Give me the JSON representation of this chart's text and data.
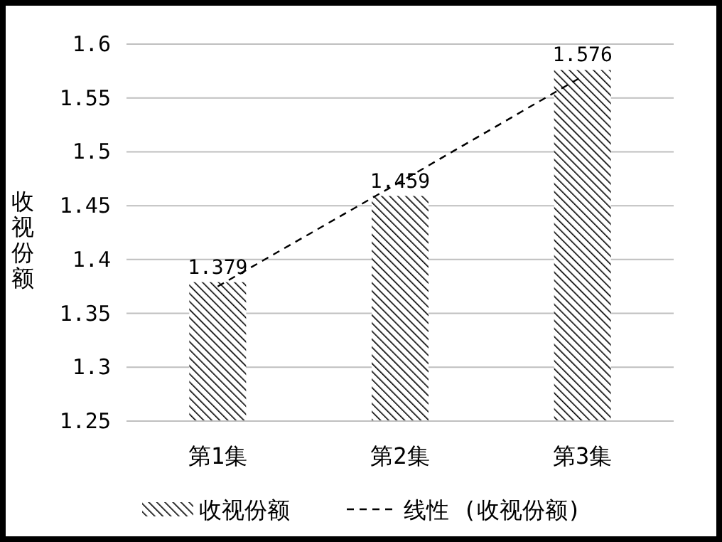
{
  "chart_data": {
    "type": "bar",
    "ylabel": "收视份额",
    "categories": [
      "第1集",
      "第2集",
      "第3集"
    ],
    "series": [
      {
        "name": "收视份额",
        "color": "#000000",
        "values": [
          1.379,
          1.459,
          1.576
        ],
        "data_labels": true
      },
      {
        "name": "线性 (收视份额)",
        "type": "line",
        "color": "#000000",
        "values": [
          1.375,
          1.472,
          1.57
        ],
        "line_style": "dashed",
        "marker": "none"
      }
    ],
    "ylim": [
      1.25,
      1.6
    ],
    "yticks": [
      1.25,
      1.3,
      1.35,
      1.4,
      1.45,
      1.5,
      1.55,
      1.6
    ],
    "grid": "y",
    "legend": "bottom"
  }
}
